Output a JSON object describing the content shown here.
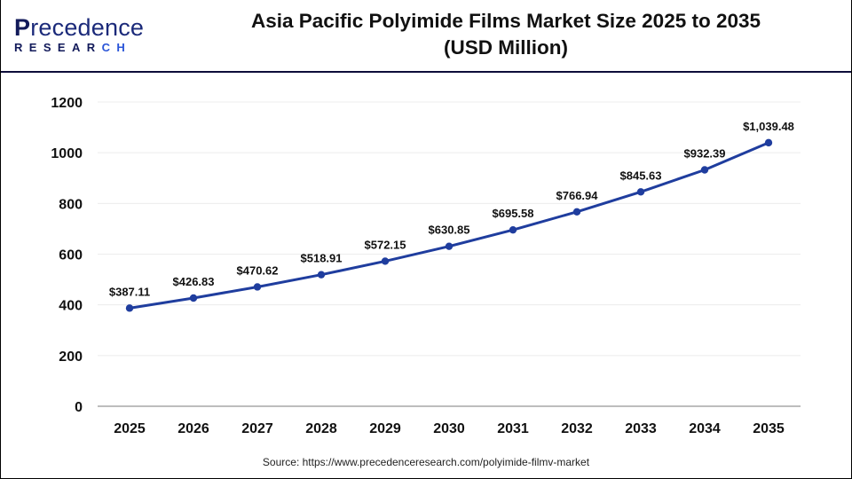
{
  "header": {
    "logo": {
      "line1": "Precedence",
      "line2": "RESEARCH"
    },
    "title_line1": "Asia Pacific Polyimide Films Market Size 2025 to 2035",
    "title_line2": "(USD Million)"
  },
  "footer": {
    "source": "Source: https://www.precedenceresearch.com/polyimide-filmv-market"
  },
  "colors": {
    "line": "#1f3d9e",
    "grid": "#ececec",
    "axis": "#bdbdbd",
    "header_rule": "#0d0d3a"
  },
  "chart_data": {
    "type": "line",
    "title": "Asia Pacific Polyimide Films Market Size 2025 to 2035 (USD Million)",
    "xlabel": "",
    "ylabel": "",
    "categories": [
      "2025",
      "2026",
      "2027",
      "2028",
      "2029",
      "2030",
      "2031",
      "2032",
      "2033",
      "2034",
      "2035"
    ],
    "series": [
      {
        "name": "Market Size (USD Million)",
        "values": [
          387.11,
          426.83,
          470.62,
          518.91,
          572.15,
          630.85,
          695.58,
          766.94,
          845.63,
          932.39,
          1039.48
        ],
        "labels": [
          "$387.11",
          "$426.83",
          "$470.62",
          "$518.91",
          "$572.15",
          "$630.85",
          "$695.58",
          "$766.94",
          "$845.63",
          "$932.39",
          "$1,039.48"
        ]
      }
    ],
    "yticks": [
      0,
      200,
      400,
      600,
      800,
      1000,
      1200
    ],
    "ylim": [
      0,
      1200
    ],
    "grid": true,
    "legend": "none"
  }
}
